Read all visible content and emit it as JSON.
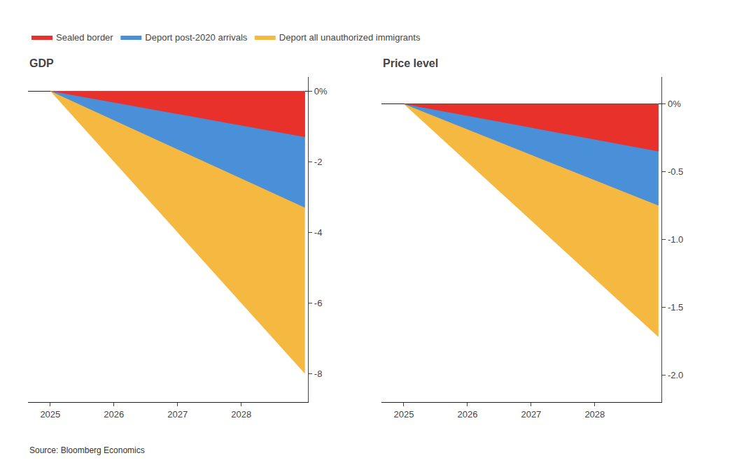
{
  "chart_data": [
    {
      "type": "area",
      "title": "GDP",
      "x": [
        2025,
        2029.0
      ],
      "series": [
        {
          "name": "Sealed border",
          "color": "#e8312a",
          "values": [
            0.0,
            -1.3
          ]
        },
        {
          "name": "Deport post-2020 arrivals",
          "color": "#4a90d9",
          "values": [
            0.0,
            -3.3
          ]
        },
        {
          "name": "Deport all unauthorized immigrants",
          "color": "#f5b942",
          "values": [
            0.0,
            -8.0
          ]
        }
      ],
      "xlim": [
        2024.65,
        2029.05
      ],
      "xticks": [
        2025,
        2026,
        2027,
        2028
      ],
      "ylim": [
        -8.8,
        0.4
      ],
      "yticks": [
        {
          "value": 0,
          "label": "0%"
        },
        -2,
        -4,
        -6,
        -8
      ],
      "grid": false,
      "legend": "top left",
      "annotations": [
        "Source: Bloomberg Economics"
      ]
    },
    {
      "type": "area",
      "title": "Price level",
      "x": [
        2025,
        2029.0
      ],
      "series": [
        {
          "name": "Sealed border",
          "color": "#e8312a",
          "values": [
            0.0,
            -0.35
          ]
        },
        {
          "name": "Deport post-2020 arrivals",
          "color": "#4a90d9",
          "values": [
            0.0,
            -0.75
          ]
        },
        {
          "name": "Deport all unauthorized immigrants",
          "color": "#f5b942",
          "values": [
            0.0,
            -1.72
          ]
        }
      ],
      "xlim": [
        2024.65,
        2029.05
      ],
      "xticks": [
        2025,
        2026,
        2027,
        2028
      ],
      "ylim": [
        -2.2,
        0.2
      ],
      "yticks": [
        {
          "value": 0,
          "label": "0%"
        },
        -0.5,
        {
          "value": -1.0,
          "label": "-1.0"
        },
        -1.5,
        {
          "value": -2.0,
          "label": "-2.0"
        }
      ],
      "grid": false
    }
  ]
}
